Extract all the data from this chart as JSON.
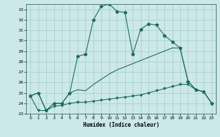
{
  "xlabel": "Humidex (Indice chaleur)",
  "bg_color": "#cce8e8",
  "grid_color": "#aacfcf",
  "line_color": "#1a6b5a",
  "xlim": [
    -0.5,
    23.5
  ],
  "ylim": [
    23,
    33.5
  ],
  "yticks": [
    23,
    24,
    25,
    26,
    27,
    28,
    29,
    30,
    31,
    32,
    33
  ],
  "xticks": [
    0,
    1,
    2,
    3,
    4,
    5,
    6,
    7,
    8,
    9,
    10,
    11,
    12,
    13,
    14,
    15,
    16,
    17,
    18,
    19,
    20,
    21,
    22,
    23
  ],
  "series1_x": [
    0,
    1,
    2,
    3,
    4,
    5,
    6,
    7,
    8,
    9,
    10,
    11,
    12,
    13,
    14,
    15,
    16,
    17,
    18,
    19,
    20,
    21,
    22,
    23
  ],
  "series1_y": [
    24.7,
    25.0,
    23.3,
    24.0,
    24.0,
    25.0,
    28.5,
    28.7,
    32.0,
    33.3,
    33.5,
    32.8,
    32.7,
    28.7,
    31.1,
    31.6,
    31.5,
    30.5,
    29.9,
    29.3,
    26.1,
    25.3,
    25.1,
    24.0
  ],
  "series2_x": [
    0,
    1,
    2,
    3,
    4,
    5,
    6,
    7,
    8,
    9,
    10,
    11,
    12,
    13,
    14,
    15,
    16,
    17,
    18,
    19,
    20,
    21,
    22,
    23
  ],
  "series2_y": [
    24.7,
    25.0,
    23.3,
    24.0,
    24.0,
    25.0,
    25.3,
    25.2,
    25.8,
    26.3,
    26.8,
    27.2,
    27.5,
    27.8,
    28.1,
    28.4,
    28.7,
    29.0,
    29.3,
    29.3,
    26.1,
    25.3,
    25.1,
    24.0
  ],
  "series3_x": [
    0,
    1,
    2,
    3,
    4,
    5,
    6,
    7,
    8,
    9,
    10,
    11,
    12,
    13,
    14,
    15,
    16,
    17,
    18,
    19,
    20,
    21,
    22,
    23
  ],
  "series3_y": [
    24.7,
    23.3,
    23.3,
    23.7,
    23.8,
    24.0,
    24.1,
    24.1,
    24.2,
    24.3,
    24.4,
    24.5,
    24.6,
    24.7,
    24.8,
    25.0,
    25.2,
    25.4,
    25.6,
    25.8,
    25.8,
    25.3,
    25.1,
    24.0
  ]
}
